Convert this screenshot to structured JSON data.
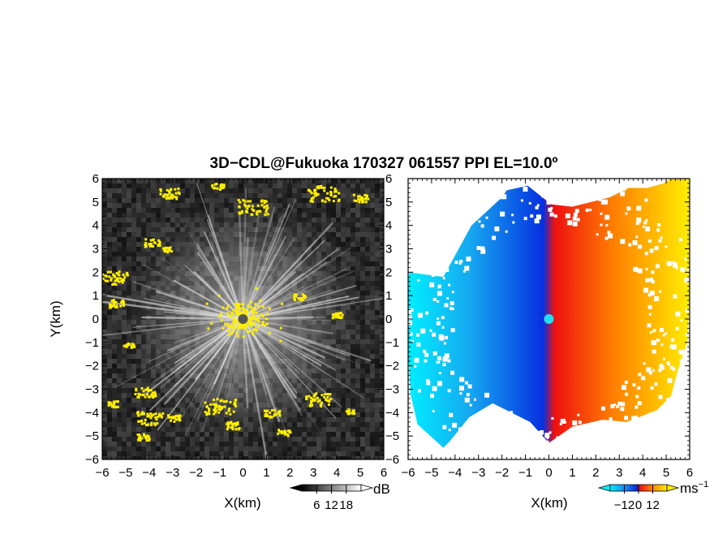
{
  "title": "3D−CDL@Fukuoka 170327 061557 PPI EL=10.0º",
  "chart_data": [
    {
      "type": "heatmap",
      "panel": "left",
      "quantity": "SNR",
      "xlabel": "X(km)",
      "ylabel": "Y(km)",
      "xlim": [
        -6,
        6
      ],
      "ylim": [
        -6,
        6
      ],
      "xticks": [
        "−6",
        "−5",
        "−4",
        "−3",
        "−2",
        "−1",
        "0",
        "1",
        "2",
        "3",
        "4",
        "5",
        "6"
      ],
      "yticks": [
        "−6",
        "−5",
        "−4",
        "−3",
        "−2",
        "−1",
        "0",
        "1",
        "2",
        "3",
        "4",
        "5",
        "6"
      ],
      "colorbar": {
        "unit": "dB",
        "ticks": [
          "6",
          "12",
          "18"
        ],
        "values": [
          6,
          12,
          18
        ],
        "colormap": "grayscale"
      },
      "highlight_color": "#ffee00",
      "center_marker_color": "#555555"
    },
    {
      "type": "heatmap",
      "panel": "right",
      "quantity": "Doppler velocity",
      "xlabel": "X(km)",
      "ylabel": "",
      "xlim": [
        -6,
        6
      ],
      "ylim": [
        -6,
        6
      ],
      "xticks": [
        "−6",
        "−5",
        "−4",
        "−3",
        "−2",
        "−1",
        "0",
        "1",
        "2",
        "3",
        "4",
        "5",
        "6"
      ],
      "yticks": [
        "−6",
        "−5",
        "−4",
        "−3",
        "−2",
        "−1",
        "0",
        "1",
        "2",
        "3",
        "4",
        "5",
        "6"
      ],
      "colorbar": {
        "unit": "ms",
        "unit_exponent": "−1",
        "ticks": [
          "−12",
          "0",
          "12"
        ],
        "values": [
          -12,
          0,
          12
        ],
        "colormap": "cyan-blue-red-yellow"
      },
      "center_marker_color": "#22ddee"
    }
  ]
}
